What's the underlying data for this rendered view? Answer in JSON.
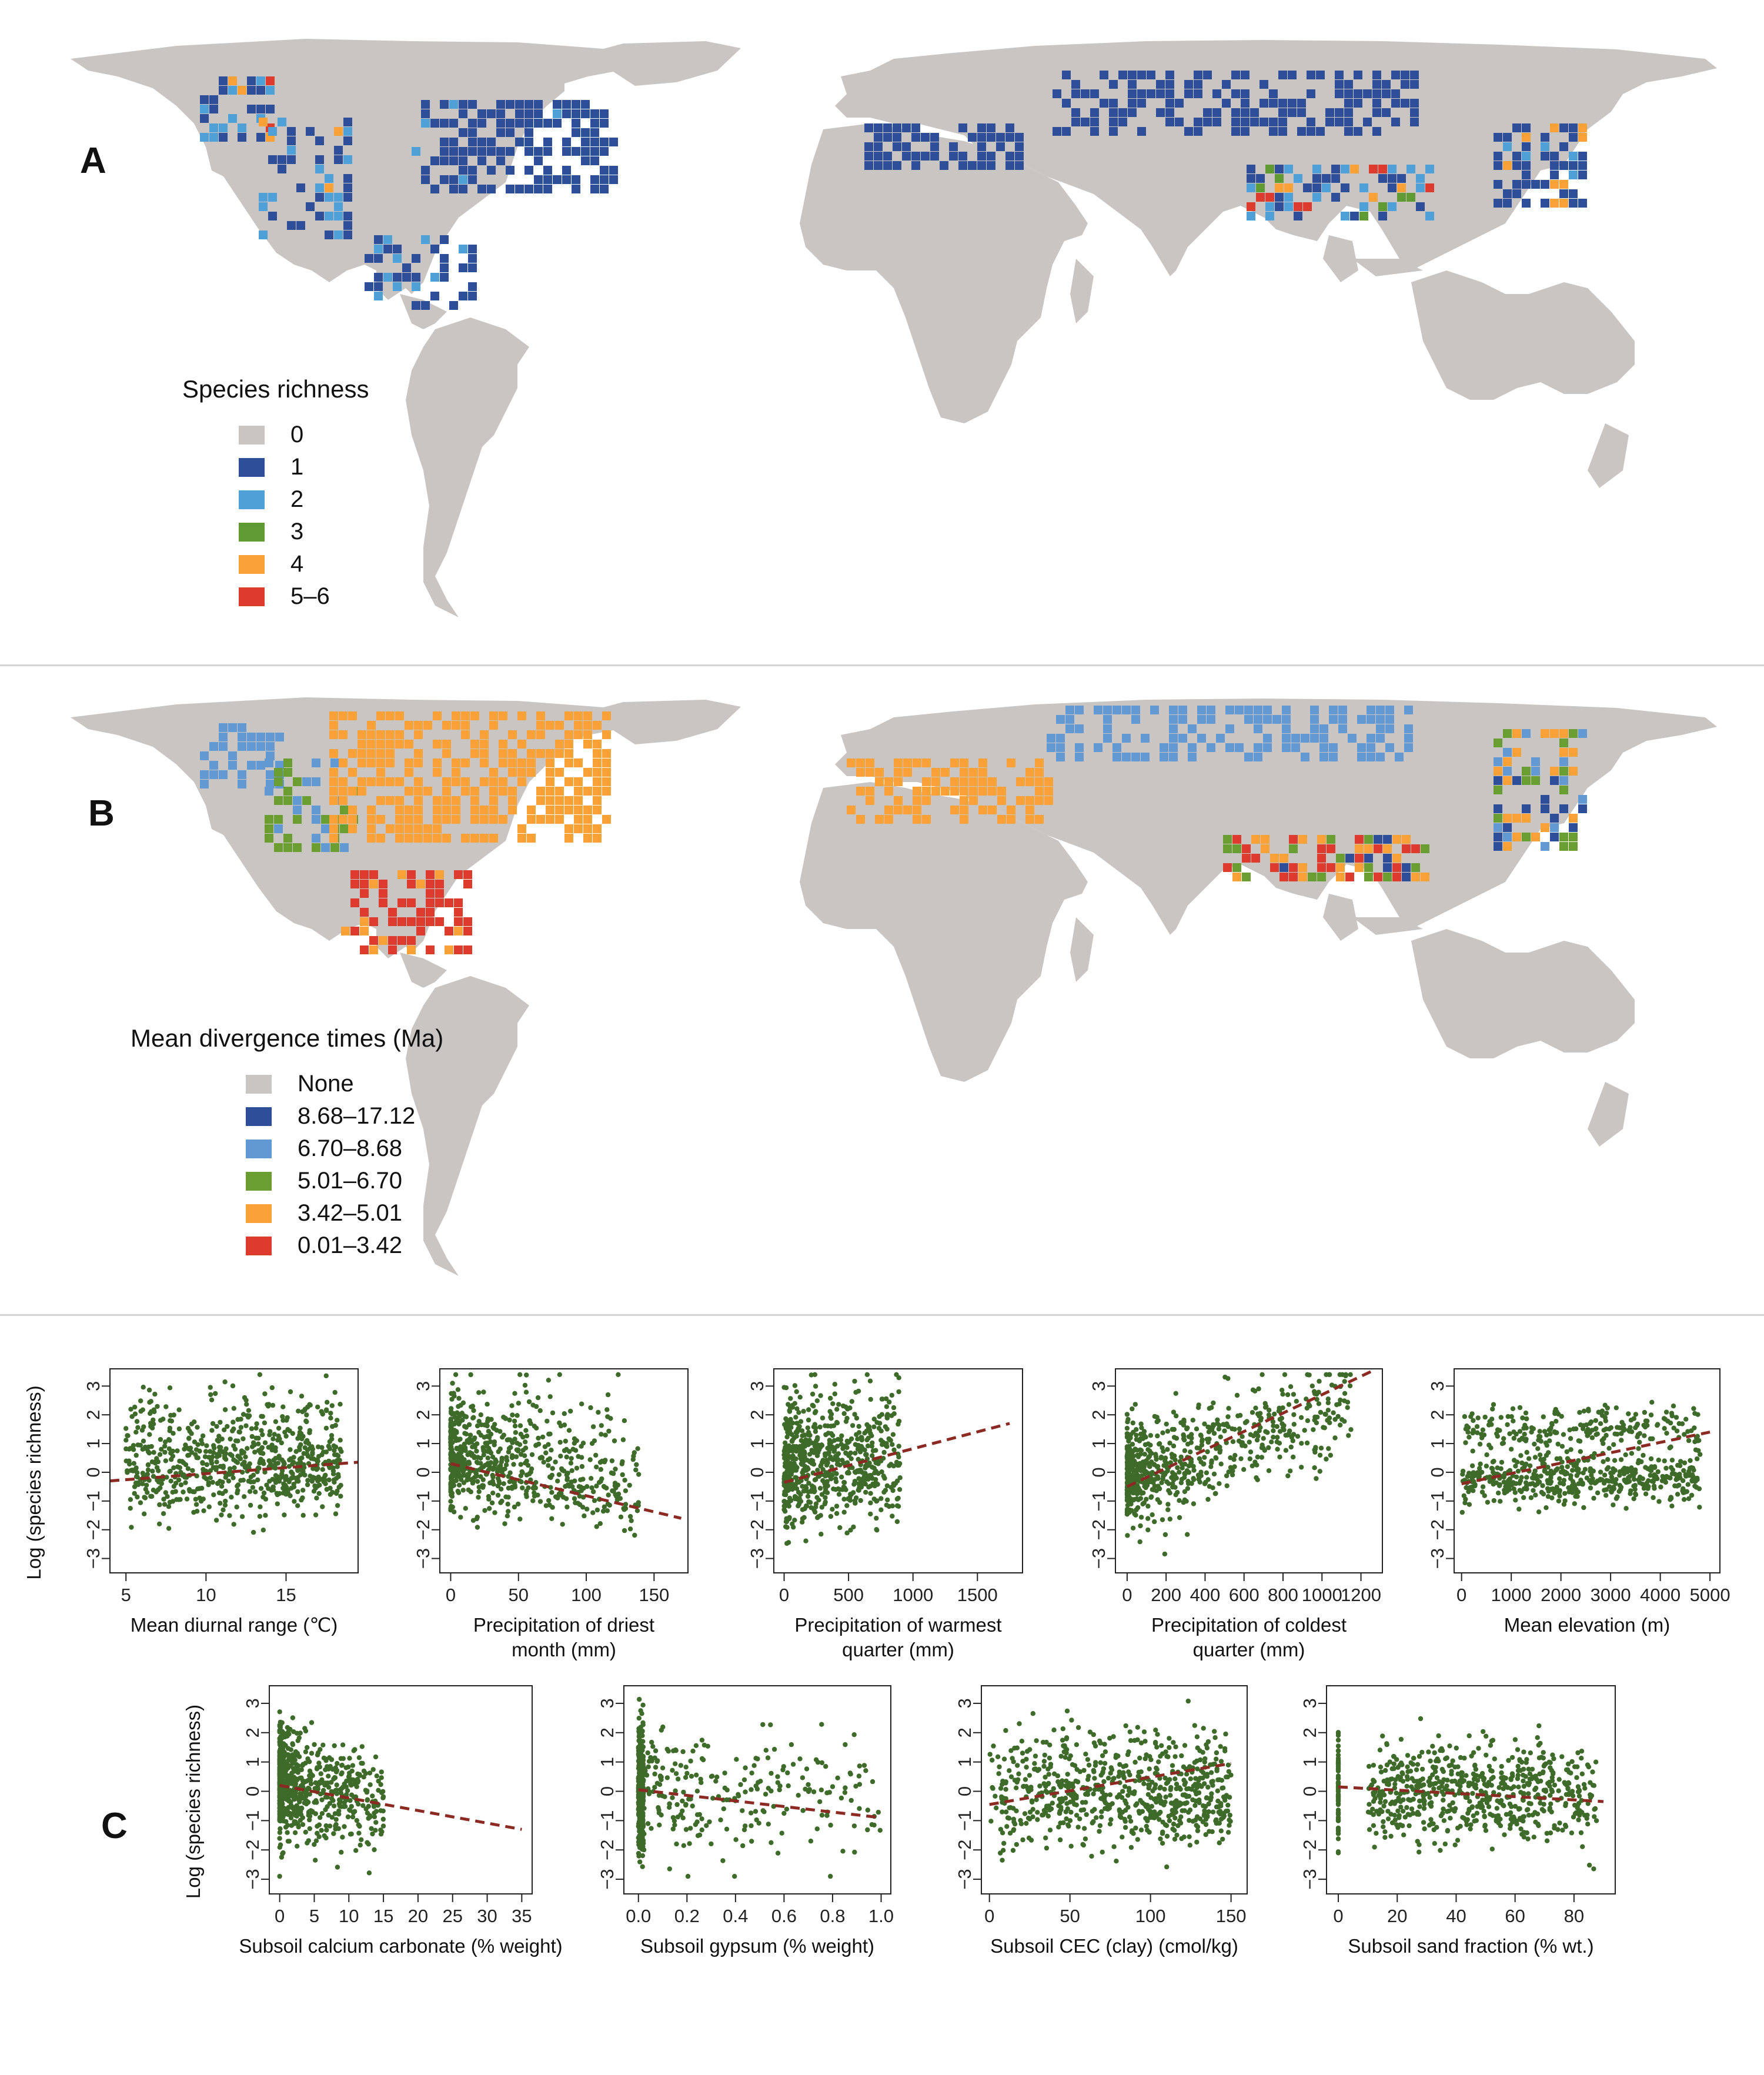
{
  "panel_a": {
    "letter": "A",
    "legend_title": "Species richness",
    "legend": [
      {
        "label": "0",
        "color": "#c8c5c2"
      },
      {
        "label": "1",
        "color": "#2f4e9a"
      },
      {
        "label": "2",
        "color": "#4fa0d7"
      },
      {
        "label": "3",
        "color": "#5f9a34"
      },
      {
        "label": "4",
        "color": "#f8a136"
      },
      {
        "label": "5–6",
        "color": "#dc3b2e"
      }
    ]
  },
  "panel_b": {
    "letter": "B",
    "legend_title": "Mean divergence times (Ma)",
    "legend": [
      {
        "label": "None",
        "color": "#c8c5c2"
      },
      {
        "label": "8.68–17.12",
        "color": "#2f4e9a"
      },
      {
        "label": "6.70–8.68",
        "color": "#6299d2"
      },
      {
        "label": "5.01–6.70",
        "color": "#6a9d32"
      },
      {
        "label": "3.42–5.01",
        "color": "#f8a136"
      },
      {
        "label": "0.01–3.42",
        "color": "#dc3b2e"
      }
    ]
  },
  "panel_c": {
    "letter": "C"
  },
  "colors": {
    "land": "#c8c5c2",
    "point": "#3e6a2a",
    "trend": "#8b2a22"
  },
  "chart_data": [
    {
      "type": "scatter",
      "xlabel": [
        "Mean diurnal range (℃)"
      ],
      "ylabel": "Log (species richness)",
      "xticks": [
        5,
        10,
        15
      ],
      "xlim": [
        4,
        19.5
      ],
      "yticks": [
        -3,
        -2,
        -1,
        0,
        1,
        2,
        3
      ],
      "ylim": [
        -3.5,
        3.6
      ],
      "trend": [
        [
          4,
          -0.3
        ],
        [
          19.5,
          0.35
        ]
      ]
    },
    {
      "type": "scatter",
      "xlabel": [
        "Precipitation of driest",
        "month (mm)"
      ],
      "ylabel": "",
      "xticks": [
        0,
        50,
        100,
        150
      ],
      "xlim": [
        -8,
        175
      ],
      "yticks": [
        -3,
        -2,
        -1,
        0,
        1,
        2,
        3
      ],
      "ylim": [
        -3.5,
        3.6
      ],
      "trend": [
        [
          0,
          0.3
        ],
        [
          170,
          -1.6
        ]
      ]
    },
    {
      "type": "scatter",
      "xlabel": [
        "Precipitation of warmest",
        "quarter (mm)"
      ],
      "ylabel": "",
      "xticks": [
        0,
        500,
        1000,
        1500
      ],
      "xlim": [
        -80,
        1850
      ],
      "yticks": [
        -3,
        -2,
        -1,
        0,
        1,
        2,
        3
      ],
      "ylim": [
        -3.5,
        3.6
      ],
      "trend": [
        [
          0,
          -0.35
        ],
        [
          1750,
          1.7
        ]
      ]
    },
    {
      "type": "scatter",
      "xlabel": [
        "Precipitation of coldest",
        "quarter (mm)"
      ],
      "ylabel": "",
      "xticks": [
        0,
        200,
        400,
        600,
        800,
        1000,
        1200
      ],
      "xlim": [
        -60,
        1310
      ],
      "yticks": [
        -3,
        -2,
        -1,
        0,
        1,
        2,
        3
      ],
      "ylim": [
        -3.5,
        3.6
      ],
      "trend": [
        [
          0,
          -0.5
        ],
        [
          1250,
          3.5
        ]
      ]
    },
    {
      "type": "scatter",
      "xlabel": [
        "Mean elevation (m)"
      ],
      "ylabel": "",
      "xticks": [
        0,
        1000,
        2000,
        3000,
        4000,
        5000
      ],
      "xlim": [
        -150,
        5200
      ],
      "yticks": [
        -3,
        -2,
        -1,
        0,
        1,
        2,
        3
      ],
      "ylim": [
        -3.5,
        3.6
      ],
      "trend": [
        [
          0,
          -0.4
        ],
        [
          5000,
          1.4
        ]
      ]
    },
    {
      "type": "scatter",
      "xlabel": [
        "Subsoil calcium carbonate (% weight)"
      ],
      "ylabel": "Log (species richness)",
      "xticks": [
        0,
        5,
        10,
        15,
        20,
        25,
        30,
        35
      ],
      "xlim": [
        -1.5,
        36.5
      ],
      "yticks": [
        -3,
        -2,
        -1,
        0,
        1,
        2,
        3
      ],
      "ylim": [
        -3.5,
        3.6
      ],
      "trend": [
        [
          0,
          0.2
        ],
        [
          35,
          -1.3
        ]
      ]
    },
    {
      "type": "scatter",
      "xlabel": [
        "Subsoil gypsum (% weight)"
      ],
      "ylabel": "",
      "xticks": [
        "0.0",
        "0.2",
        "0.4",
        "0.6",
        "0.8",
        "1.0"
      ],
      "xlim": [
        -0.06,
        1.04
      ],
      "yticks": [
        -3,
        -2,
        -1,
        0,
        1,
        2,
        3
      ],
      "ylim": [
        -3.5,
        3.6
      ],
      "trend": [
        [
          0,
          0.05
        ],
        [
          1,
          -0.9
        ]
      ]
    },
    {
      "type": "scatter",
      "xlabel": [
        "Subsoil CEC (clay) (cmol/kg)"
      ],
      "ylabel": "",
      "xticks": [
        0,
        50,
        100,
        150
      ],
      "xlim": [
        -5,
        160
      ],
      "yticks": [
        -3,
        -2,
        -1,
        0,
        1,
        2,
        3
      ],
      "ylim": [
        -3.5,
        3.6
      ],
      "trend": [
        [
          0,
          -0.45
        ],
        [
          150,
          0.95
        ]
      ]
    },
    {
      "type": "scatter",
      "xlabel": [
        "Subsoil sand fraction (% wt.)"
      ],
      "ylabel": "",
      "xticks": [
        0,
        20,
        40,
        60,
        80
      ],
      "xlim": [
        -4,
        94
      ],
      "yticks": [
        -3,
        -2,
        -1,
        0,
        1,
        2,
        3
      ],
      "ylim": [
        -3.5,
        3.6
      ],
      "trend": [
        [
          0,
          0.15
        ],
        [
          90,
          -0.35
        ]
      ]
    }
  ]
}
